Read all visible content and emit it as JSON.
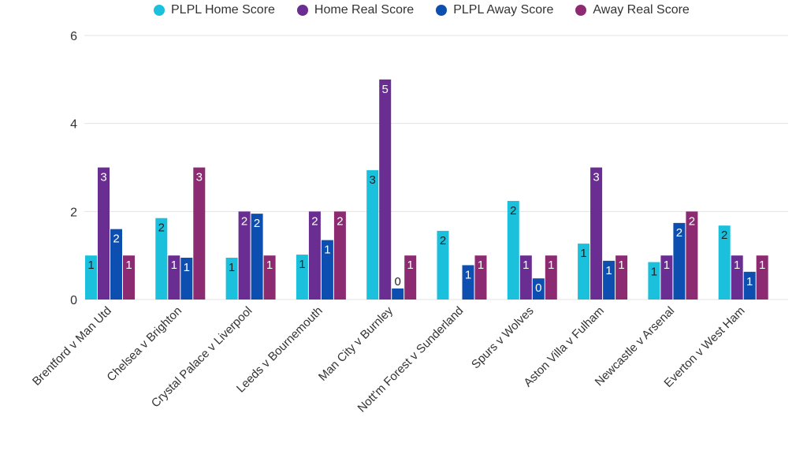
{
  "chart_data": {
    "type": "bar",
    "title": "",
    "xlabel": "",
    "ylabel": "",
    "ylim": [
      0,
      6
    ],
    "yticks": [
      "0",
      "2",
      "4",
      "6"
    ],
    "grid": true,
    "legend_position": "top",
    "categories": [
      "Brentford v Man Utd",
      "Chelsea v Brighton",
      "Crystal Palace v Liverpool",
      "Leeds v Bournemouth",
      "Man City v Burnley",
      "Nott'm Forest v Sunderland",
      "Spurs v Wolves",
      "Aston Villa v Fulham",
      "Newcastle v Arsenal",
      "Everton v West Ham"
    ],
    "series": [
      {
        "name": "PLPL Home Score",
        "color": "#1bc0dc",
        "values": [
          1.0,
          1.85,
          0.95,
          1.02,
          2.94,
          1.56,
          2.24,
          1.27,
          0.85,
          1.68
        ],
        "labels": [
          "1",
          "2",
          "1",
          "1",
          "3",
          "2",
          "2",
          "1",
          "1",
          "2"
        ]
      },
      {
        "name": "Home Real Score",
        "color": "#6a2d91",
        "values": [
          3,
          1,
          2,
          2,
          5,
          0,
          1,
          3,
          1,
          1
        ],
        "labels": [
          "3",
          "1",
          "2",
          "2",
          "5",
          "",
          "1",
          "3",
          "1",
          "1"
        ]
      },
      {
        "name": "PLPL Away Score",
        "color": "#0d4fb0",
        "values": [
          1.6,
          0.95,
          1.95,
          1.35,
          0.25,
          0.78,
          0.48,
          0.88,
          1.74,
          0.63
        ],
        "labels": [
          "2",
          "1",
          "2",
          "1",
          "0",
          "1",
          "0",
          "1",
          "2",
          "1"
        ]
      },
      {
        "name": "Away Real Score",
        "color": "#8c2b72",
        "values": [
          1,
          3,
          1,
          2,
          1,
          1,
          1,
          1,
          2,
          1
        ],
        "labels": [
          "1",
          "3",
          "1",
          "2",
          "1",
          "1",
          "1",
          "1",
          "2",
          "1"
        ]
      }
    ]
  }
}
